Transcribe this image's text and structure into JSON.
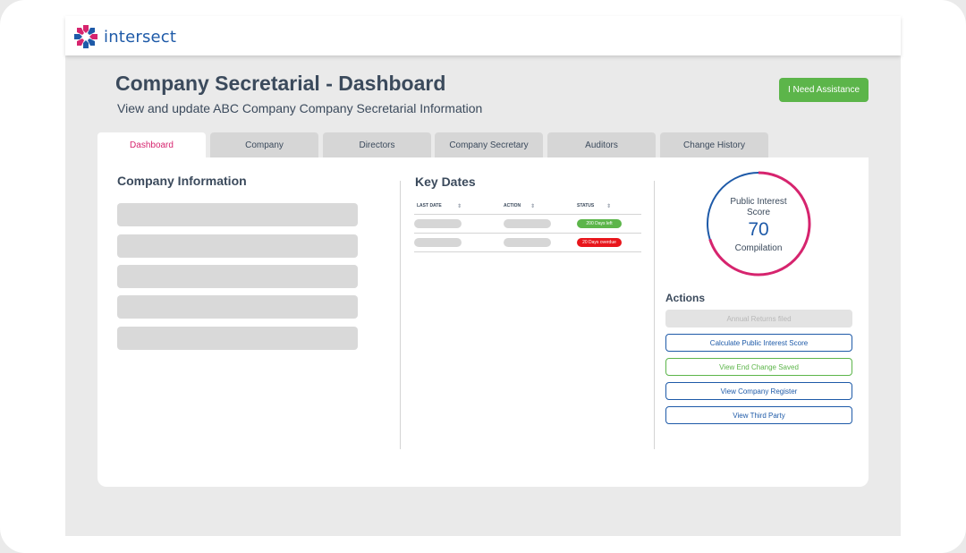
{
  "brand": {
    "name": "intersect",
    "accent": "#d6246e",
    "primary": "#1e5aa8",
    "success": "#5cb54a",
    "danger": "#e8161c"
  },
  "header": {
    "title": "Company Secretarial - Dashboard",
    "subtitle": "View and update ABC Company Company Secretarial Information",
    "assist_label": "I Need Assistance"
  },
  "tabs": [
    {
      "label": "Dashboard",
      "active": true
    },
    {
      "label": "Company",
      "active": false
    },
    {
      "label": "Directors",
      "active": false
    },
    {
      "label": "Company Secretary",
      "active": false
    },
    {
      "label": "Auditors",
      "active": false
    },
    {
      "label": "Change History",
      "active": false
    }
  ],
  "company_info": {
    "title": "Company Information"
  },
  "key_dates": {
    "title": "Key Dates",
    "columns": [
      "LAST DATE",
      "ACTION",
      "STATUS"
    ],
    "rows": [
      {
        "status": "200 Days left",
        "status_color": "#5cb54a"
      },
      {
        "status": "20 Days overdue",
        "status_color": "#e8161c"
      }
    ]
  },
  "score": {
    "label_line1": "Public Interest",
    "label_line2": "Score",
    "value": "70",
    "caption": "Compilation",
    "fraction": 0.7
  },
  "actions": {
    "title": "Actions",
    "buttons": [
      {
        "label": "Annual Returns filed",
        "style": "disabled"
      },
      {
        "label": "Calculate Public Interest Score",
        "style": "blue"
      },
      {
        "label": "View End Change Saved",
        "style": "green"
      },
      {
        "label": "View Company Register",
        "style": "blue"
      },
      {
        "label": "View Third Party",
        "style": "blue"
      }
    ]
  }
}
